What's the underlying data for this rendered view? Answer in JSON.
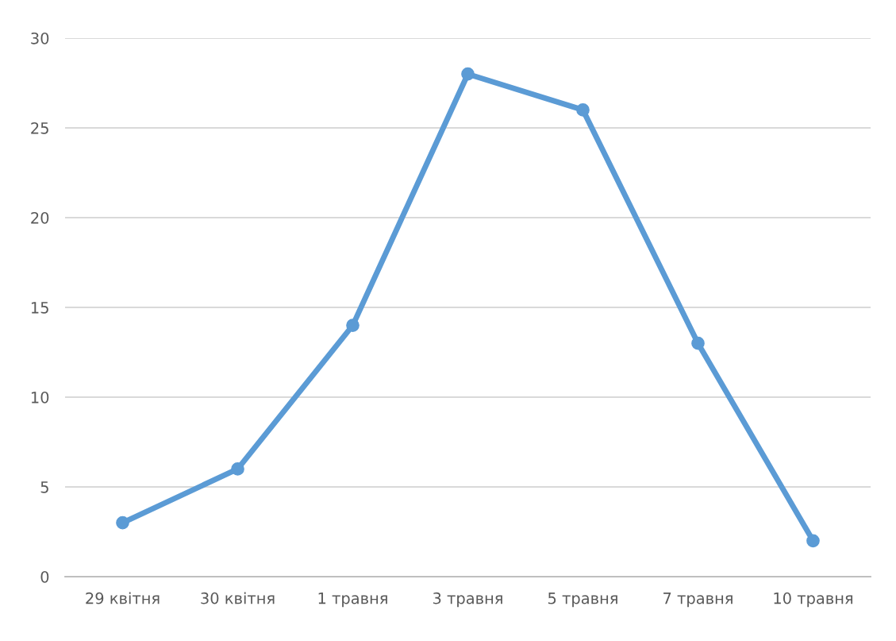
{
  "chart_data": {
    "type": "line",
    "categories": [
      "29 квітня",
      "30 квітня",
      "1 травня",
      "3 травня",
      "5 травня",
      "7 травня",
      "10 травня"
    ],
    "series": [
      {
        "color": "#5b9bd5",
        "values": [
          3,
          6,
          14,
          28,
          26,
          13,
          2
        ]
      }
    ],
    "ylim": [
      0,
      30
    ],
    "yticks": [
      0,
      5,
      10,
      15,
      20,
      25,
      30
    ],
    "grid": "y",
    "marker": "circle",
    "line_style": "solid"
  }
}
